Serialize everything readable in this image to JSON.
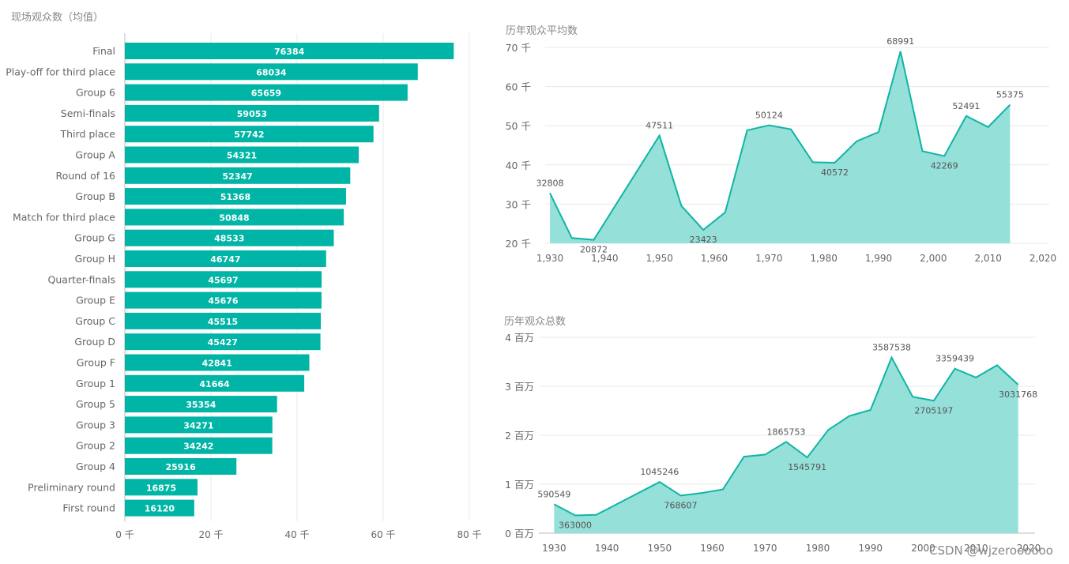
{
  "colors": {
    "bar": "#00b5a5",
    "area_fill": "#95e0d9",
    "line": "#0fb5a5",
    "grid": "#e8e8e8",
    "axis_text": "#666666",
    "title_text": "#888888",
    "bar_label": "#ffffff",
    "point_label": "#555555"
  },
  "watermark": "CSDN @wjzeroooooo",
  "chart_data": [
    {
      "type": "bar",
      "orientation": "horizontal",
      "title": "现场观众数（均值）",
      "categories": [
        "Final",
        "Play-off for third place",
        "Group 6",
        "Semi-finals",
        "Third place",
        "Group A",
        "Round of 16",
        "Group B",
        "Match for third place",
        "Group G",
        "Group H",
        "Quarter-finals",
        "Group E",
        "Group C",
        "Group D",
        "Group F",
        "Group 1",
        "Group 5",
        "Group 3",
        "Group 2",
        "Group 4",
        "Preliminary round",
        "First round"
      ],
      "values": [
        76384,
        68034,
        65659,
        59053,
        57742,
        54321,
        52347,
        51368,
        50848,
        48533,
        46747,
        45697,
        45676,
        45515,
        45427,
        42841,
        41664,
        35354,
        34271,
        34242,
        25916,
        16875,
        16120
      ],
      "xlim": [
        0,
        80000
      ],
      "ticks": [
        0,
        20000,
        40000,
        60000,
        80000
      ],
      "tick_labels": [
        "0 千",
        "20 千",
        "40 千",
        "60 千",
        "80 千"
      ]
    },
    {
      "type": "area",
      "title": "历年观众平均数",
      "x": [
        1930,
        1934,
        1938,
        1950,
        1954,
        1958,
        1962,
        1966,
        1970,
        1974,
        1978,
        1982,
        1986,
        1990,
        1994,
        1998,
        2002,
        2006,
        2010,
        2014
      ],
      "values": [
        32808,
        21353,
        20872,
        47511,
        29562,
        23423,
        27912,
        48848,
        50124,
        49099,
        40680,
        40572,
        46039,
        48389,
        68991,
        43517,
        42269,
        52491,
        49669,
        55375
      ],
      "labels": [
        {
          "x": 1930,
          "text": "32808"
        },
        {
          "x": 1938,
          "text": "20872"
        },
        {
          "x": 1950,
          "text": "47511"
        },
        {
          "x": 1958,
          "text": "23423"
        },
        {
          "x": 1970,
          "text": "50124"
        },
        {
          "x": 1982,
          "text": "40572"
        },
        {
          "x": 1994,
          "text": "68991"
        },
        {
          "x": 2002,
          "text": "42269"
        },
        {
          "x": 2006,
          "text": "52491"
        },
        {
          "x": 2014,
          "text": "55375"
        }
      ],
      "xlim": [
        1930,
        2020
      ],
      "xticks": [
        1930,
        1940,
        1950,
        1960,
        1970,
        1980,
        1990,
        2000,
        2010,
        2020
      ],
      "xtick_labels": [
        "1,930",
        "1,940",
        "1,950",
        "1,960",
        "1,970",
        "1,980",
        "1,990",
        "2,000",
        "2,010",
        "2,020"
      ],
      "ylim": [
        20000,
        70000
      ],
      "yticks": [
        20000,
        30000,
        40000,
        50000,
        60000,
        70000
      ],
      "ytick_labels": [
        "20 千",
        "30 千",
        "40 千",
        "50 千",
        "60 千",
        "70 千"
      ]
    },
    {
      "type": "area",
      "title": "历年观众总数",
      "x": [
        1930,
        1934,
        1938,
        1950,
        1954,
        1958,
        1962,
        1966,
        1970,
        1974,
        1978,
        1982,
        1986,
        1990,
        1994,
        1998,
        2002,
        2006,
        2010,
        2014,
        2018
      ],
      "values": [
        590549,
        363000,
        375700,
        1045246,
        768607,
        819810,
        893172,
        1563135,
        1603975,
        1865753,
        1545791,
        2109723,
        2394031,
        2516215,
        3587538,
        2785100,
        2705197,
        3359439,
        3178856,
        3429873,
        3031768
      ],
      "labels": [
        {
          "x": 1930,
          "text": "590549"
        },
        {
          "x": 1934,
          "text": "363000"
        },
        {
          "x": 1950,
          "text": "1045246"
        },
        {
          "x": 1954,
          "text": "768607"
        },
        {
          "x": 1974,
          "text": "1865753"
        },
        {
          "x": 1978,
          "text": "1545791"
        },
        {
          "x": 1994,
          "text": "3587538"
        },
        {
          "x": 2002,
          "text": "2705197"
        },
        {
          "x": 2006,
          "text": "3359439"
        },
        {
          "x": 2018,
          "text": "3031768"
        }
      ],
      "xlim": [
        1928,
        2020
      ],
      "xticks": [
        1930,
        1940,
        1950,
        1960,
        1970,
        1980,
        1990,
        2000,
        2010,
        2020
      ],
      "xtick_labels": [
        "1930",
        "1940",
        "1950",
        "1960",
        "1970",
        "1980",
        "1990",
        "2000",
        "2010",
        "2020"
      ],
      "ylim": [
        0,
        4000000
      ],
      "yticks": [
        0,
        1000000,
        2000000,
        3000000,
        4000000
      ],
      "ytick_labels": [
        "0 百万",
        "1 百万",
        "2 百万",
        "3 百万",
        "4 百万"
      ]
    }
  ]
}
